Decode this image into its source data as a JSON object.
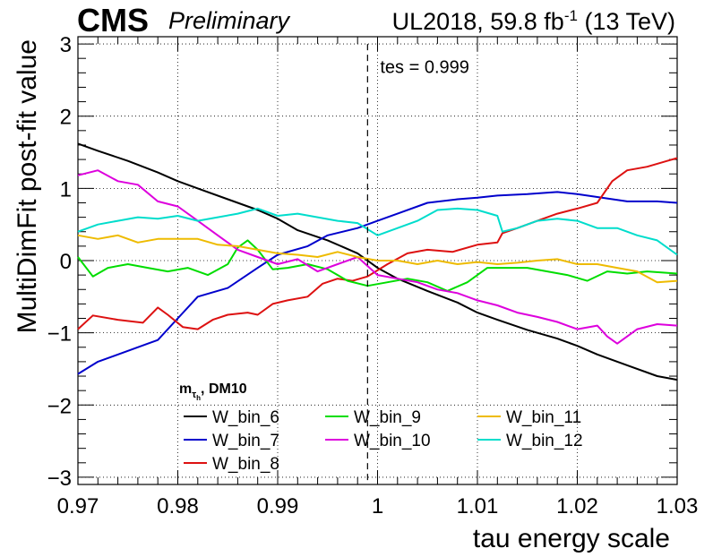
{
  "header": {
    "cms": "CMS",
    "preliminary": "Preliminary",
    "lumi_pre": "UL2018, 59.8 fb",
    "lumi_sup": "-1",
    "lumi_post": " (13 TeV)"
  },
  "chart_data": {
    "type": "line",
    "xlabel": "tau energy scale",
    "ylabel": "MultiDimFit post-fit value",
    "xlim": [
      0.97,
      1.03
    ],
    "ylim": [
      -3.1,
      3.1
    ],
    "xticks": [
      "0.97",
      "0.98",
      "0.99",
      "1",
      "1.01",
      "1.02",
      "1.03"
    ],
    "yticks": [
      "−3",
      "−2",
      "−1",
      "0",
      "1",
      "2",
      "3"
    ],
    "grid": true,
    "legend_title": "m",
    "legend_title_sub": "τ",
    "legend_title_subsub": "h",
    "legend_title_suffix": ", DM10",
    "legend_placement": "bottom",
    "annotation": "tes = 0.999",
    "marker_line_x": 0.999,
    "colors": {
      "W_bin_6": "#000000",
      "W_bin_7": "#0000cc",
      "W_bin_8": "#dd1111",
      "W_bin_9": "#00dd00",
      "W_bin_10": "#dd00dd",
      "W_bin_11": "#eebb00",
      "W_bin_12": "#00ddcc"
    },
    "series": [
      {
        "name": "W_bin_6",
        "x": [
          0.97,
          0.972,
          0.975,
          0.978,
          0.98,
          0.982,
          0.985,
          0.988,
          0.99,
          0.992,
          0.995,
          0.998,
          1.0,
          1.002,
          1.005,
          1.008,
          1.01,
          1.012,
          1.015,
          1.018,
          1.02,
          1.022,
          1.025,
          1.028,
          1.03
        ],
        "y": [
          1.62,
          1.52,
          1.38,
          1.22,
          1.1,
          1.0,
          0.85,
          0.7,
          0.58,
          0.42,
          0.28,
          0.1,
          -0.1,
          -0.25,
          -0.42,
          -0.58,
          -0.72,
          -0.82,
          -0.96,
          -1.08,
          -1.18,
          -1.3,
          -1.45,
          -1.6,
          -1.65
        ]
      },
      {
        "name": "W_bin_7",
        "x": [
          0.97,
          0.972,
          0.975,
          0.977,
          0.978,
          0.98,
          0.982,
          0.985,
          0.988,
          0.99,
          0.993,
          0.995,
          0.998,
          1.0,
          1.002,
          1.005,
          1.008,
          1.01,
          1.012,
          1.015,
          1.018,
          1.02,
          1.022,
          1.025,
          1.028,
          1.03
        ],
        "y": [
          -1.57,
          -1.4,
          -1.25,
          -1.15,
          -1.1,
          -0.8,
          -0.5,
          -0.38,
          -0.1,
          0.08,
          0.2,
          0.35,
          0.45,
          0.55,
          0.65,
          0.8,
          0.85,
          0.87,
          0.9,
          0.92,
          0.95,
          0.92,
          0.88,
          0.82,
          0.82,
          0.8
        ]
      },
      {
        "name": "W_bin_8",
        "x": [
          0.97,
          0.9715,
          0.974,
          0.9765,
          0.978,
          0.979,
          0.9805,
          0.982,
          0.9835,
          0.985,
          0.987,
          0.988,
          0.9895,
          0.991,
          0.993,
          0.9945,
          0.996,
          0.9975,
          0.999,
          1.001,
          1.003,
          1.005,
          1.0075,
          1.01,
          1.012,
          1.0125,
          1.014,
          1.016,
          1.018,
          1.02,
          1.022,
          1.0235,
          1.025,
          1.027,
          1.029,
          1.03
        ],
        "y": [
          -0.95,
          -0.76,
          -0.82,
          -0.86,
          -0.65,
          -0.75,
          -0.92,
          -0.95,
          -0.82,
          -0.75,
          -0.72,
          -0.75,
          -0.6,
          -0.55,
          -0.5,
          -0.32,
          -0.25,
          -0.28,
          -0.22,
          -0.05,
          0.1,
          0.15,
          0.12,
          0.22,
          0.25,
          0.38,
          0.45,
          0.55,
          0.65,
          0.72,
          0.8,
          1.1,
          1.25,
          1.3,
          1.38,
          1.42
        ]
      },
      {
        "name": "W_bin_9",
        "x": [
          0.97,
          0.9715,
          0.973,
          0.975,
          0.977,
          0.979,
          0.981,
          0.983,
          0.985,
          0.986,
          0.987,
          0.988,
          0.9895,
          0.991,
          0.993,
          0.995,
          0.997,
          0.999,
          1.001,
          1.003,
          1.005,
          1.007,
          1.009,
          1.011,
          1.013,
          1.015,
          1.017,
          1.019,
          1.021,
          1.023,
          1.025,
          1.027,
          1.03
        ],
        "y": [
          0.05,
          -0.22,
          -0.1,
          -0.05,
          -0.1,
          -0.15,
          -0.1,
          -0.2,
          -0.05,
          0.18,
          0.28,
          0.15,
          -0.12,
          -0.1,
          -0.05,
          -0.12,
          -0.28,
          -0.35,
          -0.3,
          -0.25,
          -0.3,
          -0.42,
          -0.3,
          -0.1,
          -0.1,
          -0.1,
          -0.15,
          -0.2,
          -0.28,
          -0.15,
          -0.18,
          -0.15,
          -0.18
        ]
      },
      {
        "name": "W_bin_10",
        "x": [
          0.97,
          0.972,
          0.974,
          0.976,
          0.978,
          0.98,
          0.982,
          0.984,
          0.986,
          0.988,
          0.99,
          0.992,
          0.994,
          0.996,
          0.998,
          1.0,
          1.002,
          1.004,
          1.006,
          1.008,
          1.01,
          1.012,
          1.014,
          1.016,
          1.018,
          1.02,
          1.022,
          1.023,
          1.024,
          1.026,
          1.028,
          1.03
        ],
        "y": [
          1.18,
          1.25,
          1.1,
          1.05,
          0.82,
          0.75,
          0.55,
          0.35,
          0.15,
          0.05,
          -0.05,
          0.02,
          -0.15,
          -0.05,
          0.05,
          -0.2,
          -0.25,
          -0.3,
          -0.4,
          -0.45,
          -0.55,
          -0.62,
          -0.72,
          -0.78,
          -0.85,
          -0.95,
          -0.9,
          -1.05,
          -1.15,
          -0.95,
          -0.88,
          -0.9
        ]
      },
      {
        "name": "W_bin_11",
        "x": [
          0.97,
          0.972,
          0.974,
          0.976,
          0.978,
          0.98,
          0.982,
          0.984,
          0.986,
          0.988,
          0.99,
          0.992,
          0.994,
          0.996,
          0.998,
          1.0,
          1.002,
          1.004,
          1.006,
          1.008,
          1.01,
          1.012,
          1.014,
          1.016,
          1.018,
          1.02,
          1.022,
          1.024,
          1.026,
          1.028,
          1.03
        ],
        "y": [
          0.35,
          0.3,
          0.35,
          0.25,
          0.3,
          0.3,
          0.3,
          0.22,
          0.2,
          0.15,
          0.1,
          0.08,
          0.05,
          0.12,
          0.05,
          0.0,
          0.0,
          -0.05,
          0.0,
          -0.05,
          -0.02,
          -0.05,
          -0.03,
          0.0,
          0.02,
          -0.05,
          -0.05,
          -0.1,
          -0.15,
          -0.3,
          -0.28
        ]
      },
      {
        "name": "W_bin_12",
        "x": [
          0.97,
          0.972,
          0.974,
          0.976,
          0.978,
          0.98,
          0.982,
          0.984,
          0.986,
          0.988,
          0.99,
          0.992,
          0.994,
          0.996,
          0.998,
          1.0,
          1.002,
          1.004,
          1.006,
          1.008,
          1.01,
          1.012,
          1.0125,
          1.014,
          1.016,
          1.018,
          1.02,
          1.022,
          1.024,
          1.026,
          1.028,
          1.03
        ],
        "y": [
          0.4,
          0.5,
          0.55,
          0.6,
          0.58,
          0.62,
          0.55,
          0.6,
          0.65,
          0.72,
          0.62,
          0.65,
          0.6,
          0.55,
          0.52,
          0.35,
          0.45,
          0.55,
          0.7,
          0.72,
          0.7,
          0.62,
          0.4,
          0.45,
          0.55,
          0.58,
          0.55,
          0.45,
          0.45,
          0.35,
          0.28,
          0.08
        ]
      }
    ]
  }
}
